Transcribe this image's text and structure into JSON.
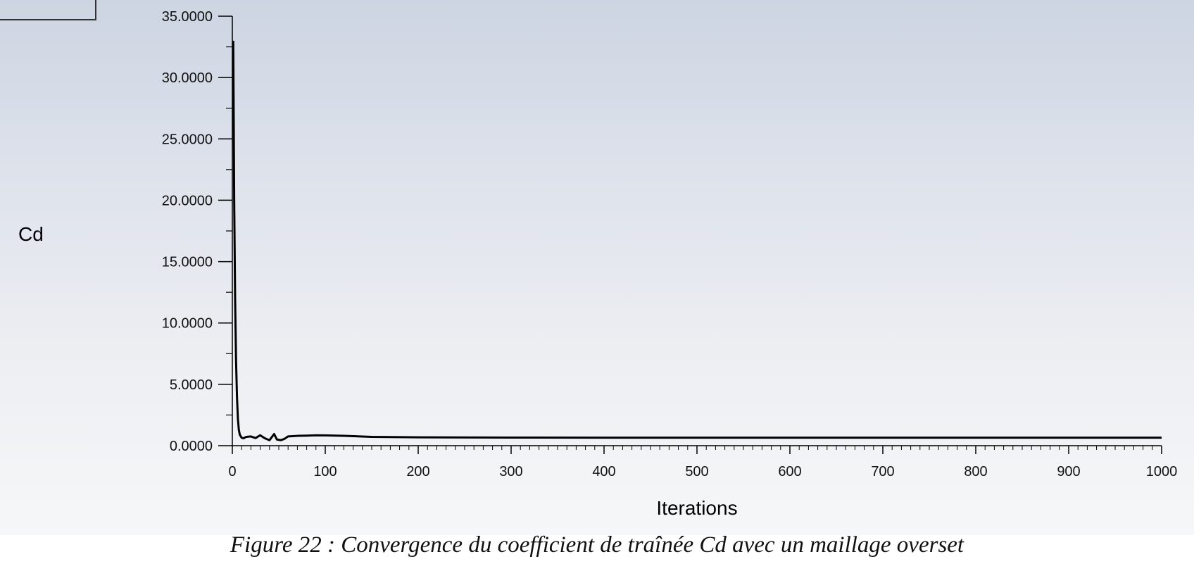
{
  "chart_data": {
    "type": "line",
    "xlabel": "Iterations",
    "ylabel": "Cd",
    "xlim": [
      0,
      1000
    ],
    "ylim": [
      0,
      35
    ],
    "x_ticks": [
      "0",
      "100",
      "200",
      "300",
      "400",
      "500",
      "600",
      "700",
      "800",
      "900",
      "1000"
    ],
    "y_ticks": [
      "0.0000",
      "5.0000",
      "10.0000",
      "15.0000",
      "20.0000",
      "25.0000",
      "30.0000",
      "35.0000"
    ],
    "grid": false,
    "series": [
      {
        "line_color": "#000000",
        "x": [
          1,
          2,
          3,
          4,
          5,
          6,
          7,
          8,
          10,
          12,
          15,
          20,
          25,
          30,
          35,
          40,
          45,
          48,
          52,
          56,
          60,
          70,
          80,
          90,
          100,
          120,
          150,
          200,
          300,
          400,
          500,
          600,
          700,
          800,
          900,
          1000
        ],
        "y": [
          33.0,
          20.0,
          12.0,
          7.0,
          4.0,
          2.2,
          1.3,
          0.9,
          0.65,
          0.6,
          0.72,
          0.75,
          0.62,
          0.85,
          0.6,
          0.45,
          0.95,
          0.5,
          0.45,
          0.55,
          0.75,
          0.8,
          0.82,
          0.85,
          0.84,
          0.8,
          0.72,
          0.68,
          0.66,
          0.65,
          0.65,
          0.65,
          0.65,
          0.65,
          0.65,
          0.65
        ]
      }
    ]
  },
  "caption": "Figure 22 : Convergence du coefficient de traînée Cd avec un maillage overset"
}
